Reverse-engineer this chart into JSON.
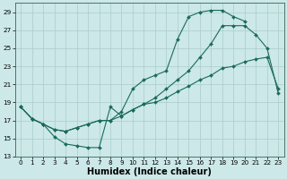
{
  "background_color": "#cce8e8",
  "grid_color": "#aacccc",
  "line_color": "#1a6b5a",
  "curve_upper_x": [
    0,
    1,
    2,
    3,
    4,
    5,
    6,
    7,
    8,
    9,
    10,
    11,
    12,
    13,
    14,
    15,
    16,
    17,
    18,
    19,
    20
  ],
  "curve_upper_y": [
    18.5,
    17.2,
    16.6,
    16.0,
    15.8,
    16.2,
    16.6,
    17.0,
    17.0,
    18.0,
    20.5,
    21.5,
    22.0,
    22.5,
    26.0,
    28.5,
    29.0,
    29.2,
    29.2,
    28.5,
    28.0
  ],
  "curve_mid_x": [
    0,
    1,
    2,
    3,
    4,
    5,
    6,
    7,
    8,
    9,
    10,
    11,
    12,
    13,
    14,
    15,
    16,
    17,
    18,
    19,
    20,
    21,
    22,
    23
  ],
  "curve_mid_y": [
    18.5,
    17.2,
    16.6,
    16.0,
    15.8,
    16.2,
    16.6,
    17.0,
    17.0,
    17.5,
    18.2,
    18.8,
    19.5,
    20.5,
    21.5,
    22.5,
    24.0,
    25.5,
    27.5,
    27.5,
    27.5,
    26.5,
    25.0,
    20.0
  ],
  "curve_lower_x": [
    0,
    1,
    2,
    3,
    4,
    5,
    6,
    7,
    8,
    9,
    10,
    11,
    12,
    13,
    14,
    15,
    16,
    17,
    18,
    19,
    20,
    21,
    22,
    23
  ],
  "curve_lower_y": [
    18.5,
    17.2,
    16.6,
    15.2,
    14.4,
    14.2,
    14.0,
    14.0,
    18.5,
    17.5,
    18.2,
    18.8,
    19.0,
    19.5,
    20.2,
    20.8,
    21.5,
    22.0,
    22.8,
    23.0,
    23.5,
    23.8,
    24.0,
    20.5
  ],
  "xlim": [
    -0.5,
    23.5
  ],
  "ylim": [
    13,
    30
  ],
  "xticks": [
    0,
    1,
    2,
    3,
    4,
    5,
    6,
    7,
    8,
    9,
    10,
    11,
    12,
    13,
    14,
    15,
    16,
    17,
    18,
    19,
    20,
    21,
    22,
    23
  ],
  "yticks": [
    13,
    15,
    17,
    19,
    21,
    23,
    25,
    27,
    29
  ],
  "xlabel": "Humidex (Indice chaleur)",
  "xlabel_fontsize": 7,
  "tick_fontsize": 5.2,
  "line_width": 0.8,
  "marker_size": 2.0
}
